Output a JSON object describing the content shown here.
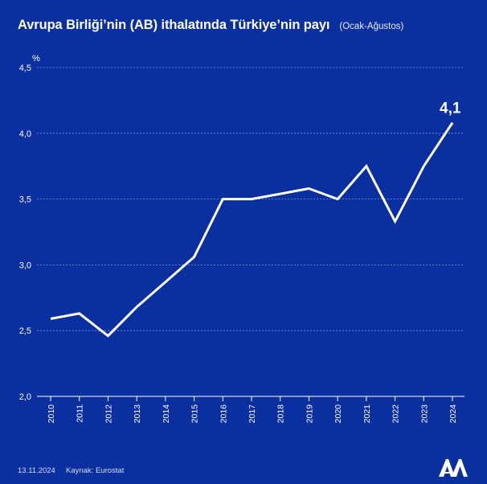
{
  "header": {
    "title": "Avrupa Birliği’nin (AB) ithalatında Türkiye’nin payı",
    "subtitle": "(Ocak-Ağustos)"
  },
  "footer": {
    "date": "13.11.2024",
    "source": "Kaynak: Eurostat",
    "logo": "aa-logo-icon"
  },
  "colors": {
    "background": "#0a2f9e",
    "line": "#ffffff",
    "grid": "#7f93d6",
    "text": "#ffffff"
  },
  "chart_data": {
    "type": "line",
    "title": "Avrupa Birliği’nin (AB) ithalatında Türkiye’nin payı",
    "subtitle": "(Ocak-Ağustos)",
    "xlabel": "",
    "ylabel": "%",
    "ylim": [
      2.0,
      4.5
    ],
    "yticks": [
      2.0,
      2.5,
      3.0,
      3.5,
      4.0,
      4.5
    ],
    "ytick_labels": [
      "2,0",
      "2,5",
      "3,0",
      "3,5",
      "4,0",
      "4,5"
    ],
    "grid": true,
    "legend": "none",
    "categories": [
      "2010",
      "2011",
      "2012",
      "2013",
      "2014",
      "2015",
      "2016",
      "2017",
      "2018",
      "2019",
      "2020",
      "2021",
      "2022",
      "2023",
      "2024"
    ],
    "series": [
      {
        "name": "Türkiye'nin payı",
        "values": [
          2.59,
          2.63,
          2.46,
          2.68,
          2.87,
          3.06,
          3.5,
          3.5,
          3.54,
          3.58,
          3.5,
          3.75,
          3.33,
          3.75,
          4.08
        ]
      }
    ],
    "annotations": [
      {
        "category": "2024",
        "text": "4,1"
      }
    ]
  }
}
